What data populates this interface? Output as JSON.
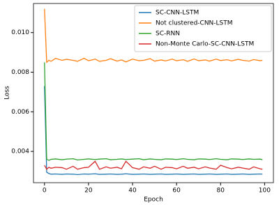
{
  "chart_data": {
    "type": "line",
    "x_label": "Epoch",
    "y_label": "Loss",
    "x": [
      0,
      1,
      2,
      3,
      5,
      8,
      10,
      13,
      15,
      18,
      20,
      23,
      25,
      28,
      30,
      33,
      35,
      37,
      40,
      43,
      45,
      48,
      50,
      53,
      55,
      58,
      60,
      63,
      65,
      68,
      70,
      73,
      75,
      78,
      80,
      83,
      85,
      88,
      90,
      93,
      95,
      98,
      99
    ],
    "series": [
      {
        "name": "SC-CNN-LSTM",
        "color": "#1f77b4",
        "values": [
          0.0073,
          0.00295,
          0.00288,
          0.00285,
          0.00286,
          0.00284,
          0.00286,
          0.00285,
          0.00283,
          0.00286,
          0.00285,
          0.00287,
          0.00284,
          0.00285,
          0.00286,
          0.00284,
          0.00285,
          0.00287,
          0.00284,
          0.00285,
          0.00286,
          0.00284,
          0.00285,
          0.00286,
          0.00284,
          0.00285,
          0.00286,
          0.00284,
          0.00285,
          0.00286,
          0.00284,
          0.00285,
          0.00286,
          0.00284,
          0.00285,
          0.00286,
          0.00284,
          0.00285,
          0.00286,
          0.00284,
          0.00285,
          0.00286,
          0.00285
        ]
      },
      {
        "name": "Not clustered-CNN-LSTM",
        "color": "#ff7f0e",
        "values": [
          0.0112,
          0.0085,
          0.0086,
          0.00855,
          0.0087,
          0.0086,
          0.00865,
          0.0086,
          0.00855,
          0.0087,
          0.00858,
          0.00866,
          0.00855,
          0.0086,
          0.00868,
          0.00856,
          0.00862,
          0.00852,
          0.00866,
          0.00858,
          0.0086,
          0.00868,
          0.00856,
          0.00862,
          0.00857,
          0.00866,
          0.00858,
          0.00863,
          0.00855,
          0.00867,
          0.00858,
          0.00862,
          0.00856,
          0.00866,
          0.00859,
          0.00863,
          0.00857,
          0.00865,
          0.0086,
          0.00856,
          0.00864,
          0.00858,
          0.0086
        ]
      },
      {
        "name": "SC-RNN",
        "color": "#2ca02c",
        "values": [
          0.0085,
          0.0036,
          0.00355,
          0.0036,
          0.00362,
          0.00358,
          0.00361,
          0.00363,
          0.00357,
          0.0036,
          0.00362,
          0.00359,
          0.00361,
          0.00363,
          0.00358,
          0.0036,
          0.00362,
          0.00359,
          0.00361,
          0.00363,
          0.00358,
          0.00362,
          0.0036,
          0.00358,
          0.00362,
          0.00361,
          0.00359,
          0.00363,
          0.0036,
          0.00358,
          0.00362,
          0.00361,
          0.00359,
          0.00363,
          0.0036,
          0.00358,
          0.00362,
          0.00361,
          0.00359,
          0.00362,
          0.0036,
          0.00361,
          0.00358
        ]
      },
      {
        "name": "Non-Monte Carlo-SC-CNN-LSTM",
        "color": "#d62728",
        "values": [
          0.0033,
          0.0031,
          0.0032,
          0.00315,
          0.0032,
          0.00318,
          0.0031,
          0.00325,
          0.0031,
          0.00318,
          0.0032,
          0.0035,
          0.0031,
          0.00322,
          0.00315,
          0.0032,
          0.00312,
          0.0035,
          0.00318,
          0.0031,
          0.00322,
          0.00315,
          0.00325,
          0.0031,
          0.0032,
          0.00318,
          0.00312,
          0.00325,
          0.00315,
          0.0032,
          0.00312,
          0.00322,
          0.00316,
          0.0031,
          0.0033,
          0.00318,
          0.00312,
          0.0032,
          0.00316,
          0.0031,
          0.00322,
          0.00312,
          0.0031
        ]
      }
    ],
    "xlim": [
      -5,
      104
    ],
    "xticks": [
      0,
      20,
      40,
      60,
      80,
      100
    ],
    "ylim": [
      0.00242,
      0.01147
    ],
    "yticks": [
      0.004,
      0.006,
      0.008,
      {
        "value": 0.01,
        "label": "0.010"
      }
    ],
    "legend": "upper right"
  }
}
